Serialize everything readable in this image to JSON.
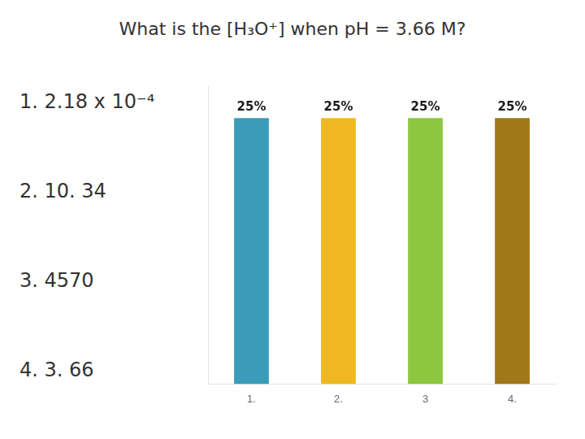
{
  "chart_data": {
    "type": "bar",
    "title": "What is the [H₃O⁺] when pH = 3.66 M?",
    "categories": [
      "1.",
      "2.",
      "3",
      "4."
    ],
    "values": [
      25,
      25,
      25,
      25
    ],
    "value_labels": [
      "25%",
      "25%",
      "25%",
      "25%"
    ],
    "data_labels": true,
    "colors": [
      "#3a9cb8",
      "#f0b820",
      "#8dc63f",
      "#a07818"
    ],
    "ylim": [
      0,
      28
    ],
    "grid": false,
    "tick_labels": "x",
    "annotations": [
      "1. 2.18 x 10⁻⁴",
      "2. 10. 34",
      "3. 4570",
      "4. 3. 66"
    ]
  }
}
